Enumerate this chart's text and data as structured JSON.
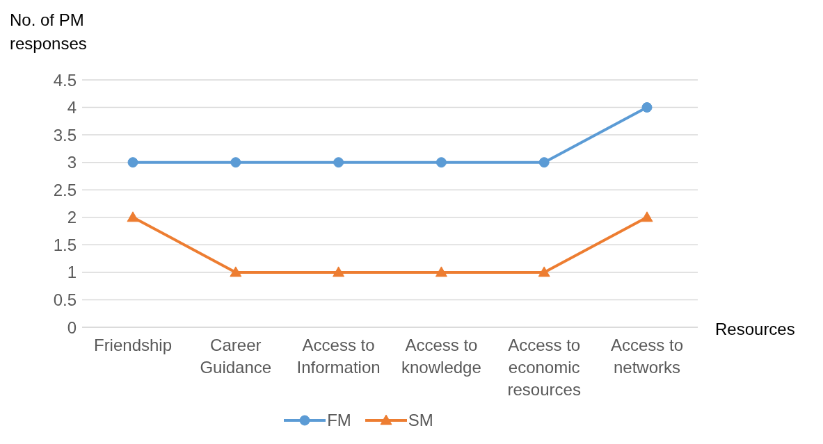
{
  "chart_data": {
    "type": "line",
    "ylabel": "No. of PM responses",
    "xlabel": "Resources",
    "categories": [
      "Friendship",
      "Career Guidance",
      "Access to Information",
      "Access to knowledge",
      "Access to economic resources",
      "Access to networks"
    ],
    "series": [
      {
        "name": "FM",
        "color": "#5b9bd5",
        "marker": "circle",
        "values": [
          3,
          3,
          3,
          3,
          3,
          4
        ]
      },
      {
        "name": "SM",
        "color": "#ed7d31",
        "marker": "triangle",
        "values": [
          2,
          1,
          1,
          1,
          1,
          2
        ]
      }
    ],
    "ylim": [
      0,
      4.5
    ],
    "yticks": [
      0,
      0.5,
      1,
      1.5,
      2,
      2.5,
      3,
      3.5,
      4,
      4.5
    ],
    "grid": "y",
    "legend": "bottom",
    "line_style": "solid"
  }
}
